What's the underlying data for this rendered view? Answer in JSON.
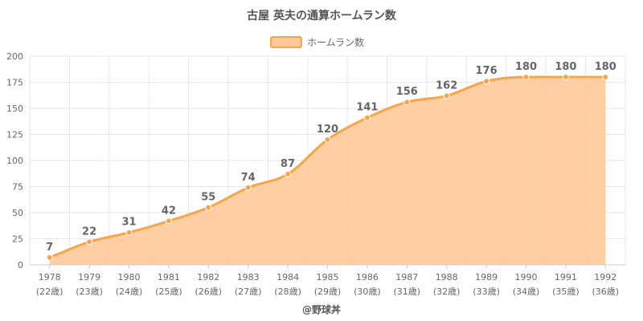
{
  "chart_data": {
    "type": "area",
    "title": "古屋 英夫の通算ホームラン数",
    "legend": {
      "label": "ホームラン数",
      "position": "top"
    },
    "x": [
      "1978",
      "1979",
      "1980",
      "1981",
      "1982",
      "1983",
      "1984",
      "1985",
      "1986",
      "1987",
      "1988",
      "1989",
      "1990",
      "1991",
      "1992"
    ],
    "x_sublabels": [
      "(22歳)",
      "(23歳)",
      "(24歳)",
      "(25歳)",
      "(26歳)",
      "(27歳)",
      "(28歳)",
      "(29歳)",
      "(30歳)",
      "(31歳)",
      "(32歳)",
      "(33歳)",
      "(34歳)",
      "(35歳)",
      "(36歳)"
    ],
    "series": [
      {
        "name": "ホームラン数",
        "values": [
          7,
          22,
          31,
          42,
          55,
          74,
          87,
          120,
          141,
          156,
          162,
          176,
          180,
          180,
          180
        ]
      }
    ],
    "ylim": [
      0,
      200
    ],
    "yticks": [
      "0",
      "25",
      "50",
      "75",
      "100",
      "125",
      "150",
      "175",
      "200"
    ],
    "grid": true,
    "colors": {
      "fill": "#ffc999",
      "line": "#f7a54b",
      "grid": "#e6e6e6",
      "axis": "#cccccc"
    }
  },
  "credit": "@野球丼"
}
